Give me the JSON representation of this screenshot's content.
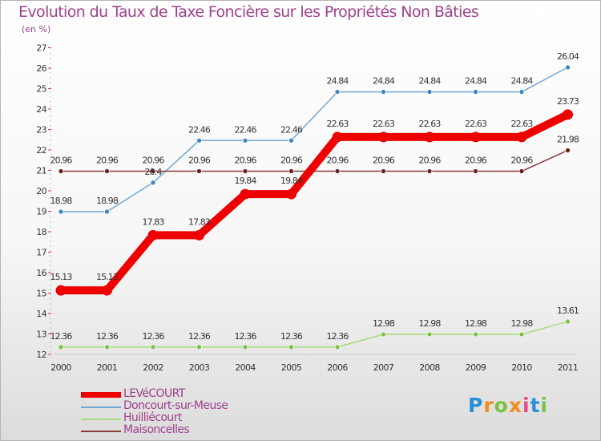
{
  "title": "Evolution du Taux de Taxe Foncière sur les Propriétés Non Bâties",
  "subtitle": "(en %)",
  "logo": {
    "text": "Proxiti",
    "colors": [
      "#2b8fd6",
      "#f28c1c",
      "#7cc142",
      "#f28c1c",
      "#e84b8a",
      "#2b8fd6",
      "#7cc142"
    ]
  },
  "chart_data": {
    "type": "line",
    "title": "Evolution du Taux de Taxe Foncière sur les Propriétés Non Bâties",
    "ylabel": "(en %)",
    "xlabel": "",
    "x": [
      "2000",
      "2001",
      "2002",
      "2003",
      "2004",
      "2005",
      "2006",
      "2007",
      "2008",
      "2009",
      "2010",
      "2011"
    ],
    "ylim": [
      12,
      27
    ],
    "yticks": [
      12,
      13,
      14,
      15,
      16,
      17,
      18,
      19,
      20,
      21,
      22,
      23,
      24,
      25,
      26,
      27
    ],
    "series": [
      {
        "name": "Doncourt-sur-Meuse",
        "color": "#6fa8d6",
        "marker": "#3f86c4",
        "values": [
          18.98,
          18.98,
          20.4,
          22.46,
          22.46,
          22.46,
          24.84,
          24.84,
          24.84,
          24.84,
          24.84,
          26.04
        ],
        "labels": [
          "18.98",
          "18.98",
          "20.4",
          "22.46",
          "22.46",
          "22.46",
          "24.84",
          "24.84",
          "24.84",
          "24.84",
          "24.84",
          "26.04"
        ]
      },
      {
        "name": "Huilliécourt",
        "color": "#a6d97a",
        "marker": "#7cc142",
        "values": [
          12.36,
          12.36,
          12.36,
          12.36,
          12.36,
          12.36,
          12.36,
          12.98,
          12.98,
          12.98,
          12.98,
          13.61
        ],
        "labels": [
          "12.36",
          "12.36",
          "12.36",
          "12.36",
          "12.36",
          "12.36",
          "12.36",
          "12.98",
          "12.98",
          "12.98",
          "12.98",
          "13.61"
        ]
      },
      {
        "name": "Maisoncelles",
        "color": "#8b3a3a",
        "marker": "#6b2020",
        "values": [
          20.96,
          20.96,
          20.96,
          20.96,
          20.96,
          20.96,
          20.96,
          20.96,
          20.96,
          20.96,
          20.96,
          21.98
        ],
        "labels": [
          "20.96",
          "20.96",
          "20.96",
          "20.96",
          "20.96",
          "20.96",
          "20.96",
          "20.96",
          "20.96",
          "20.96",
          "20.96",
          "21.98"
        ]
      },
      {
        "name": "LEVéCOURT",
        "color": "#ee0000",
        "marker": "#ee0000",
        "values": [
          15.13,
          15.13,
          17.83,
          17.83,
          19.84,
          19.84,
          22.63,
          22.63,
          22.63,
          22.63,
          22.63,
          23.73
        ],
        "labels": [
          "15.13",
          "15.13",
          "17.83",
          "17.83",
          "19.84",
          "19.84",
          "22.63",
          "22.63",
          "22.63",
          "22.63",
          "22.63",
          "23.73"
        ]
      }
    ],
    "legend": [
      "LEVéCOURT",
      "Doncourt-sur-Meuse",
      "Huilliécourt",
      "Maisoncelles"
    ],
    "grid": false,
    "legend_position": "bottom-left"
  }
}
